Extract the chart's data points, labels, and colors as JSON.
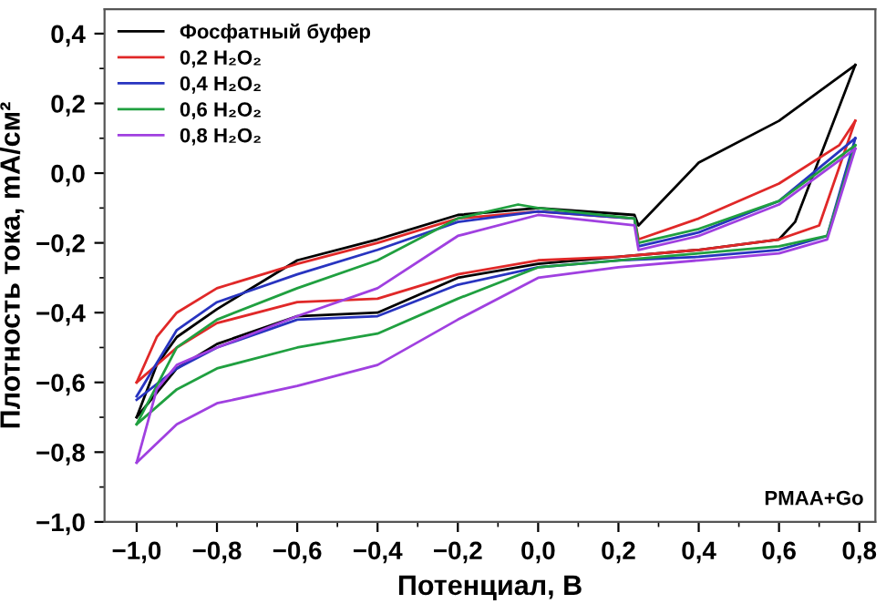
{
  "chart_data": {
    "type": "line",
    "xlabel": "Потенциал, В",
    "ylabel": "Плотность тока, mA/см²",
    "annotations": [
      "PMAA+Go"
    ],
    "legend": "top left",
    "grid": false,
    "marker": "none",
    "line_style": "solid",
    "xlim": [
      -1.08,
      0.84
    ],
    "ylim": [
      -1.0,
      0.47
    ],
    "xticks": [
      {
        "value": -1.0,
        "label": "−1,0"
      },
      {
        "value": -0.9,
        "label": null
      },
      {
        "value": -0.8,
        "label": "−0,8"
      },
      {
        "value": -0.7,
        "label": null
      },
      {
        "value": -0.6,
        "label": "−0,6"
      },
      {
        "value": -0.5,
        "label": null
      },
      {
        "value": -0.4,
        "label": "−0,4"
      },
      {
        "value": -0.3,
        "label": null
      },
      {
        "value": -0.2,
        "label": "−0,2"
      },
      {
        "value": -0.1,
        "label": null
      },
      {
        "value": 0.0,
        "label": "0,0"
      },
      {
        "value": 0.1,
        "label": null
      },
      {
        "value": 0.2,
        "label": "0,2"
      },
      {
        "value": 0.3,
        "label": null
      },
      {
        "value": 0.4,
        "label": "0,4"
      },
      {
        "value": 0.5,
        "label": null
      },
      {
        "value": 0.6,
        "label": "0,6"
      },
      {
        "value": 0.7,
        "label": null
      },
      {
        "value": 0.8,
        "label": "0,8"
      }
    ],
    "yticks": [
      {
        "value": -1.0,
        "label": "−1,0"
      },
      {
        "value": -0.9,
        "label": null
      },
      {
        "value": -0.8,
        "label": "−0,8"
      },
      {
        "value": -0.7,
        "label": null
      },
      {
        "value": -0.6,
        "label": "−0,6"
      },
      {
        "value": -0.5,
        "label": null
      },
      {
        "value": -0.4,
        "label": "−0,4"
      },
      {
        "value": -0.3,
        "label": null
      },
      {
        "value": -0.2,
        "label": "−0,2"
      },
      {
        "value": -0.1,
        "label": null
      },
      {
        "value": 0.0,
        "label": "0,0"
      },
      {
        "value": 0.1,
        "label": null
      },
      {
        "value": 0.2,
        "label": "0,2"
      },
      {
        "value": 0.3,
        "label": null
      },
      {
        "value": 0.4,
        "label": "0,4"
      }
    ],
    "series": [
      {
        "name": "Фосфатный буфер",
        "color": "#000000",
        "x": [
          -1.0,
          -0.95,
          -0.9,
          -0.8,
          -0.6,
          -0.4,
          -0.2,
          0.0,
          0.24,
          0.25,
          0.4,
          0.6,
          0.79
        ],
        "values": [
          -0.7,
          -0.55,
          -0.47,
          -0.39,
          -0.25,
          -0.19,
          -0.12,
          -0.1,
          -0.12,
          -0.15,
          0.03,
          0.15,
          0.31
        ]
      },
      {
        "color": "#000000",
        "x": [
          0.79,
          0.64,
          0.6,
          0.4,
          0.2,
          0.0,
          -0.2,
          -0.4,
          -0.6,
          -0.8,
          -0.9,
          -1.0
        ],
        "values": [
          0.31,
          -0.14,
          -0.19,
          -0.22,
          -0.24,
          -0.26,
          -0.3,
          -0.4,
          -0.41,
          -0.49,
          -0.56,
          -0.7
        ]
      },
      {
        "name": "0,2 H₂O₂",
        "color": "#e02828",
        "x": [
          -1.0,
          -0.95,
          -0.9,
          -0.8,
          -0.6,
          -0.4,
          -0.2,
          0.0,
          0.24,
          0.25,
          0.4,
          0.6,
          0.75,
          0.79
        ],
        "values": [
          -0.6,
          -0.47,
          -0.4,
          -0.33,
          -0.26,
          -0.2,
          -0.13,
          -0.11,
          -0.13,
          -0.19,
          -0.13,
          -0.03,
          0.08,
          0.15
        ]
      },
      {
        "color": "#e02828",
        "x": [
          0.79,
          0.7,
          0.6,
          0.4,
          0.2,
          0.0,
          -0.2,
          -0.4,
          -0.6,
          -0.8,
          -0.9,
          -1.0
        ],
        "values": [
          0.15,
          -0.15,
          -0.19,
          -0.22,
          -0.24,
          -0.25,
          -0.29,
          -0.36,
          -0.37,
          -0.43,
          -0.5,
          -0.6
        ]
      },
      {
        "name": "0,4 H₂O₂",
        "color": "#2834c0",
        "x": [
          -1.0,
          -0.9,
          -0.8,
          -0.6,
          -0.4,
          -0.2,
          0.0,
          0.24,
          0.25,
          0.4,
          0.6,
          0.79
        ],
        "values": [
          -0.64,
          -0.45,
          -0.37,
          -0.29,
          -0.22,
          -0.14,
          -0.11,
          -0.13,
          -0.21,
          -0.17,
          -0.08,
          0.1
        ]
      },
      {
        "color": "#2834c0",
        "x": [
          0.79,
          0.72,
          0.6,
          0.4,
          0.2,
          0.0,
          -0.2,
          -0.4,
          -0.6,
          -0.8,
          -0.9,
          -1.0
        ],
        "values": [
          0.1,
          -0.18,
          -0.22,
          -0.24,
          -0.25,
          -0.27,
          -0.32,
          -0.41,
          -0.42,
          -0.5,
          -0.56,
          -0.65
        ]
      },
      {
        "name": "0,6 H₂O₂",
        "color": "#20a040",
        "x": [
          -1.0,
          -0.9,
          -0.8,
          -0.6,
          -0.4,
          -0.2,
          -0.05,
          0.0,
          0.24,
          0.25,
          0.4,
          0.6,
          0.79
        ],
        "values": [
          -0.72,
          -0.5,
          -0.42,
          -0.33,
          -0.25,
          -0.13,
          -0.09,
          -0.1,
          -0.13,
          -0.2,
          -0.16,
          -0.08,
          0.08
        ]
      },
      {
        "color": "#20a040",
        "x": [
          0.79,
          0.72,
          0.6,
          0.4,
          0.2,
          0.0,
          -0.2,
          -0.4,
          -0.6,
          -0.8,
          -0.9,
          -1.0
        ],
        "values": [
          0.08,
          -0.18,
          -0.21,
          -0.23,
          -0.25,
          -0.27,
          -0.36,
          -0.46,
          -0.5,
          -0.56,
          -0.62,
          -0.72
        ]
      },
      {
        "name": "0,8 H₂O₂",
        "color": "#a040e0",
        "x": [
          -1.0,
          -0.95,
          -0.9,
          -0.8,
          -0.6,
          -0.4,
          -0.2,
          0.0,
          0.24,
          0.25,
          0.4,
          0.6,
          0.79
        ],
        "values": [
          -0.83,
          -0.62,
          -0.55,
          -0.5,
          -0.41,
          -0.33,
          -0.18,
          -0.12,
          -0.15,
          -0.22,
          -0.18,
          -0.09,
          0.07
        ]
      },
      {
        "color": "#a040e0",
        "x": [
          0.79,
          0.72,
          0.6,
          0.4,
          0.2,
          0.0,
          -0.2,
          -0.4,
          -0.6,
          -0.8,
          -0.9,
          -1.0
        ],
        "values": [
          0.07,
          -0.19,
          -0.23,
          -0.25,
          -0.27,
          -0.3,
          -0.42,
          -0.55,
          -0.61,
          -0.66,
          -0.72,
          -0.83
        ]
      }
    ]
  }
}
